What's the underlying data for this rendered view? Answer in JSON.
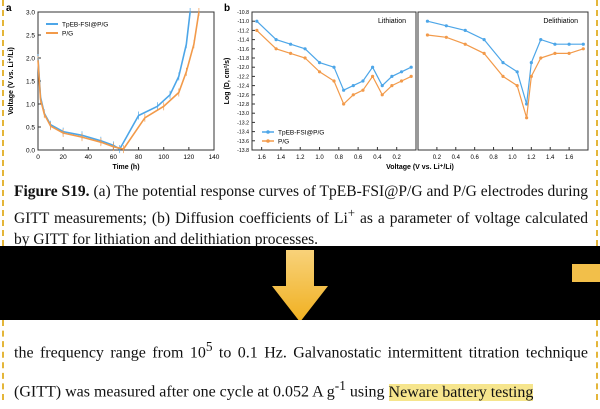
{
  "chart_data": [
    {
      "type": "line",
      "panel_label": "a",
      "xlabel": "Time (h)",
      "ylabel": "Voltage (V vs. Li⁺/Li)",
      "xlim": [
        0,
        140
      ],
      "ylim": [
        0.0,
        3.0
      ],
      "xticks": [
        "0",
        "20",
        "40",
        "60",
        "80",
        "100",
        "120",
        "140"
      ],
      "yticks": [
        "0.0",
        "0.5",
        "1.0",
        "1.5",
        "2.0",
        "2.5",
        "3.0"
      ],
      "legend": [
        "TpEB-FSI@P/G",
        "P/G"
      ],
      "series": [
        {
          "name": "TpEB-FSI@P/G",
          "color": "#4da6e8",
          "x": [
            0,
            2,
            5,
            10,
            20,
            35,
            50,
            60,
            65,
            80,
            95,
            105,
            112,
            118,
            121
          ],
          "y": [
            2.0,
            1.15,
            0.8,
            0.55,
            0.4,
            0.32,
            0.2,
            0.1,
            0.02,
            0.75,
            0.95,
            1.2,
            1.6,
            2.3,
            3.0
          ]
        },
        {
          "name": "P/G",
          "color": "#f29a4a",
          "x": [
            0,
            2,
            5,
            10,
            20,
            35,
            50,
            60,
            68,
            85,
            100,
            112,
            118,
            124,
            128
          ],
          "y": [
            1.95,
            1.1,
            0.78,
            0.52,
            0.37,
            0.28,
            0.17,
            0.07,
            0.02,
            0.7,
            0.95,
            1.25,
            1.7,
            2.3,
            3.0
          ]
        }
      ]
    },
    {
      "type": "line",
      "panel_label": "b",
      "ylabel": "Log (D, cm²/s)",
      "xlabel": "Voltage (V vs. Li⁺/Li)",
      "ylim": [
        -13.8,
        -10.8
      ],
      "yticks": [
        "-10.8",
        "-11.0",
        "-11.2",
        "-11.4",
        "-11.6",
        "-11.8",
        "-12.0",
        "-12.2",
        "-12.4",
        "-12.6",
        "-12.8",
        "-13.0",
        "-13.2",
        "-13.4",
        "-13.6",
        "-13.8"
      ],
      "subpanels": [
        {
          "title": "Lithiation",
          "xticks": [
            "1.6",
            "1.4",
            "1.2",
            "1.0",
            "0.8",
            "0.6",
            "0.4",
            "0.2"
          ],
          "series": [
            {
              "name": "TpEB-FSI@P/G",
              "color": "#4da6e8",
              "x": [
                1.65,
                1.45,
                1.3,
                1.15,
                1.0,
                0.85,
                0.75,
                0.65,
                0.55,
                0.45,
                0.35,
                0.25,
                0.15,
                0.05
              ],
              "y": [
                -11.0,
                -11.4,
                -11.5,
                -11.6,
                -11.9,
                -12.0,
                -12.5,
                -12.4,
                -12.3,
                -12.0,
                -12.4,
                -12.2,
                -12.1,
                -12.0
              ]
            },
            {
              "name": "P/G",
              "color": "#f29a4a",
              "x": [
                1.65,
                1.45,
                1.3,
                1.15,
                1.0,
                0.85,
                0.75,
                0.65,
                0.55,
                0.45,
                0.35,
                0.25,
                0.15,
                0.05
              ],
              "y": [
                -11.2,
                -11.6,
                -11.7,
                -11.8,
                -12.1,
                -12.3,
                -12.8,
                -12.6,
                -12.5,
                -12.2,
                -12.6,
                -12.4,
                -12.3,
                -12.2
              ]
            }
          ]
        },
        {
          "title": "Delithiation",
          "xticks": [
            "0.2",
            "0.4",
            "0.6",
            "0.8",
            "1.0",
            "1.2",
            "1.4",
            "1.6"
          ],
          "series": [
            {
              "name": "TpEB-FSI@P/G",
              "color": "#4da6e8",
              "x": [
                0.1,
                0.3,
                0.5,
                0.7,
                0.9,
                1.05,
                1.15,
                1.2,
                1.3,
                1.45,
                1.6,
                1.75
              ],
              "y": [
                -11.0,
                -11.1,
                -11.2,
                -11.4,
                -11.9,
                -12.1,
                -12.8,
                -11.9,
                -11.4,
                -11.5,
                -11.5,
                -11.5
              ]
            },
            {
              "name": "P/G",
              "color": "#f29a4a",
              "x": [
                0.1,
                0.3,
                0.5,
                0.7,
                0.9,
                1.05,
                1.15,
                1.2,
                1.3,
                1.45,
                1.6,
                1.75
              ],
              "y": [
                -11.3,
                -11.35,
                -11.5,
                -11.7,
                -12.2,
                -12.4,
                -13.1,
                -12.2,
                -11.8,
                -11.7,
                -11.7,
                -11.6
              ]
            }
          ]
        }
      ],
      "legend": [
        "TpEB-FSI@P/G",
        "P/G"
      ]
    }
  ],
  "caption": {
    "label": "Figure S19.",
    "text": " (a) The potential response curves of TpEB-FSI@P/G and P/G electrodes during GITT measurements; (b) Diffusion coefficients of Li",
    "sup": "+",
    "text2": " as a parameter of voltage calculated by GITT for lithiation and delithiation processes."
  },
  "body": {
    "part1": "the frequency range from 10",
    "sup1": "5",
    "part2": " to 0.1 Hz. Galvanostatic intermittent titration technique (GITT) was measured after one cycle at 0.052 A g",
    "sup2": "-1",
    "part3": " using ",
    "highlight": "Neware battery testing"
  }
}
